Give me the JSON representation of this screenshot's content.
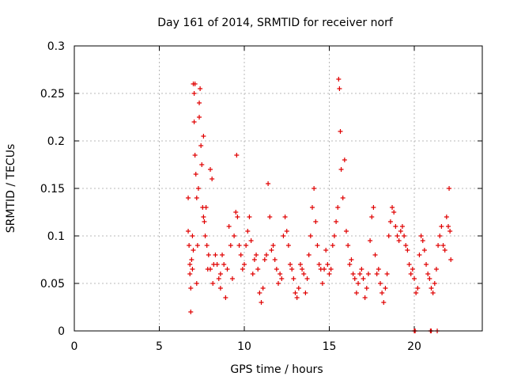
{
  "chart_data": {
    "type": "scatter",
    "title": "Day 161 of 2014, SRMTID for receiver norf",
    "xlabel": "GPS time / hours",
    "ylabel": "SRMTID / TECUs",
    "xlim": [
      0,
      24
    ],
    "ylim": [
      0,
      0.3
    ],
    "xticks": [
      0,
      5,
      10,
      15,
      20
    ],
    "xtick_labels": [
      "0",
      "5",
      "10",
      "15",
      "20"
    ],
    "yticks": [
      0,
      0.05,
      0.1,
      0.15,
      0.2,
      0.25,
      0.3
    ],
    "ytick_labels": [
      "0",
      "0.05",
      "0.1",
      "0.15",
      "0.2",
      "0.25",
      "0.3"
    ],
    "grid": true,
    "marker": "+",
    "color": "#e00000",
    "series": [
      {
        "name": "norf",
        "points": [
          [
            6.7,
            0.14
          ],
          [
            6.7,
            0.105
          ],
          [
            6.75,
            0.09
          ],
          [
            6.8,
            0.07
          ],
          [
            6.8,
            0.06
          ],
          [
            6.85,
            0.045
          ],
          [
            6.85,
            0.02
          ],
          [
            6.9,
            0.075
          ],
          [
            6.95,
            0.1
          ],
          [
            6.95,
            0.065
          ],
          [
            7.0,
            0.085
          ],
          [
            7.0,
            0.26
          ],
          [
            7.05,
            0.22
          ],
          [
            7.05,
            0.25
          ],
          [
            7.1,
            0.26
          ],
          [
            7.1,
            0.185
          ],
          [
            7.15,
            0.165
          ],
          [
            7.2,
            0.14
          ],
          [
            7.2,
            0.05
          ],
          [
            7.25,
            0.09
          ],
          [
            7.3,
            0.15
          ],
          [
            7.35,
            0.24
          ],
          [
            7.35,
            0.225
          ],
          [
            7.4,
            0.255
          ],
          [
            7.45,
            0.195
          ],
          [
            7.5,
            0.175
          ],
          [
            7.55,
            0.13
          ],
          [
            7.6,
            0.12
          ],
          [
            7.6,
            0.205
          ],
          [
            7.65,
            0.115
          ],
          [
            7.7,
            0.1
          ],
          [
            7.75,
            0.13
          ],
          [
            7.8,
            0.09
          ],
          [
            7.85,
            0.065
          ],
          [
            7.9,
            0.08
          ],
          [
            8.0,
            0.065
          ],
          [
            8.0,
            0.17
          ],
          [
            8.1,
            0.16
          ],
          [
            8.15,
            0.05
          ],
          [
            8.2,
            0.07
          ],
          [
            8.3,
            0.08
          ],
          [
            8.4,
            0.07
          ],
          [
            8.5,
            0.055
          ],
          [
            8.6,
            0.06
          ],
          [
            8.6,
            0.045
          ],
          [
            8.7,
            0.08
          ],
          [
            8.8,
            0.07
          ],
          [
            8.9,
            0.035
          ],
          [
            9.0,
            0.065
          ],
          [
            9.1,
            0.11
          ],
          [
            9.2,
            0.09
          ],
          [
            9.3,
            0.055
          ],
          [
            9.4,
            0.1
          ],
          [
            9.5,
            0.125
          ],
          [
            9.55,
            0.185
          ],
          [
            9.6,
            0.12
          ],
          [
            9.7,
            0.09
          ],
          [
            9.8,
            0.08
          ],
          [
            9.9,
            0.065
          ],
          [
            10.0,
            0.07
          ],
          [
            10.1,
            0.09
          ],
          [
            10.2,
            0.105
          ],
          [
            10.3,
            0.12
          ],
          [
            10.4,
            0.095
          ],
          [
            10.5,
            0.06
          ],
          [
            10.6,
            0.075
          ],
          [
            10.7,
            0.08
          ],
          [
            10.8,
            0.065
          ],
          [
            10.9,
            0.04
          ],
          [
            11.0,
            0.03
          ],
          [
            11.1,
            0.045
          ],
          [
            11.2,
            0.075
          ],
          [
            11.3,
            0.08
          ],
          [
            11.4,
            0.155
          ],
          [
            11.5,
            0.12
          ],
          [
            11.6,
            0.085
          ],
          [
            11.7,
            0.09
          ],
          [
            11.8,
            0.075
          ],
          [
            11.9,
            0.065
          ],
          [
            12.0,
            0.05
          ],
          [
            12.1,
            0.06
          ],
          [
            12.2,
            0.055
          ],
          [
            12.3,
            0.1
          ],
          [
            12.4,
            0.12
          ],
          [
            12.5,
            0.105
          ],
          [
            12.6,
            0.09
          ],
          [
            12.7,
            0.07
          ],
          [
            12.8,
            0.065
          ],
          [
            12.9,
            0.055
          ],
          [
            13.0,
            0.04
          ],
          [
            13.1,
            0.035
          ],
          [
            13.2,
            0.045
          ],
          [
            13.3,
            0.07
          ],
          [
            13.4,
            0.065
          ],
          [
            13.5,
            0.06
          ],
          [
            13.6,
            0.04
          ],
          [
            13.7,
            0.055
          ],
          [
            13.8,
            0.08
          ],
          [
            13.9,
            0.1
          ],
          [
            14.0,
            0.13
          ],
          [
            14.1,
            0.15
          ],
          [
            14.2,
            0.115
          ],
          [
            14.3,
            0.09
          ],
          [
            14.4,
            0.07
          ],
          [
            14.5,
            0.065
          ],
          [
            14.6,
            0.05
          ],
          [
            14.7,
            0.065
          ],
          [
            14.8,
            0.085
          ],
          [
            14.9,
            0.07
          ],
          [
            15.0,
            0.06
          ],
          [
            15.1,
            0.065
          ],
          [
            15.2,
            0.09
          ],
          [
            15.3,
            0.1
          ],
          [
            15.4,
            0.115
          ],
          [
            15.5,
            0.13
          ],
          [
            15.55,
            0.265
          ],
          [
            15.6,
            0.255
          ],
          [
            15.65,
            0.21
          ],
          [
            15.7,
            0.17
          ],
          [
            15.8,
            0.14
          ],
          [
            15.9,
            0.18
          ],
          [
            16.0,
            0.105
          ],
          [
            16.1,
            0.09
          ],
          [
            16.2,
            0.07
          ],
          [
            16.3,
            0.075
          ],
          [
            16.4,
            0.06
          ],
          [
            16.5,
            0.055
          ],
          [
            16.6,
            0.04
          ],
          [
            16.7,
            0.05
          ],
          [
            16.8,
            0.06
          ],
          [
            16.9,
            0.065
          ],
          [
            17.0,
            0.055
          ],
          [
            17.1,
            0.035
          ],
          [
            17.2,
            0.045
          ],
          [
            17.3,
            0.06
          ],
          [
            17.4,
            0.095
          ],
          [
            17.5,
            0.12
          ],
          [
            17.6,
            0.13
          ],
          [
            17.7,
            0.08
          ],
          [
            17.8,
            0.06
          ],
          [
            17.9,
            0.065
          ],
          [
            18.0,
            0.05
          ],
          [
            18.1,
            0.04
          ],
          [
            18.2,
            0.03
          ],
          [
            18.3,
            0.045
          ],
          [
            18.4,
            0.06
          ],
          [
            18.5,
            0.1
          ],
          [
            18.6,
            0.115
          ],
          [
            18.7,
            0.13
          ],
          [
            18.8,
            0.125
          ],
          [
            18.9,
            0.11
          ],
          [
            19.0,
            0.1
          ],
          [
            19.1,
            0.095
          ],
          [
            19.2,
            0.105
          ],
          [
            19.3,
            0.11
          ],
          [
            19.4,
            0.1
          ],
          [
            19.5,
            0.09
          ],
          [
            19.6,
            0.085
          ],
          [
            19.7,
            0.07
          ],
          [
            19.8,
            0.06
          ],
          [
            19.9,
            0.065
          ],
          [
            20.0,
            0.055
          ],
          [
            20.1,
            0.04
          ],
          [
            20.2,
            0.045
          ],
          [
            20.3,
            0.08
          ],
          [
            20.4,
            0.1
          ],
          [
            20.5,
            0.095
          ],
          [
            20.6,
            0.085
          ],
          [
            20.7,
            0.07
          ],
          [
            20.8,
            0.06
          ],
          [
            20.9,
            0.055
          ],
          [
            21.0,
            0.045
          ],
          [
            21.1,
            0.04
          ],
          [
            21.2,
            0.05
          ],
          [
            21.3,
            0.065
          ],
          [
            21.4,
            0.09
          ],
          [
            21.5,
            0.1
          ],
          [
            21.6,
            0.11
          ],
          [
            21.7,
            0.09
          ],
          [
            21.8,
            0.085
          ],
          [
            21.9,
            0.12
          ],
          [
            22.0,
            0.11
          ],
          [
            22.05,
            0.15
          ],
          [
            22.1,
            0.105
          ],
          [
            22.15,
            0.075
          ],
          [
            20.05,
            0.0
          ],
          [
            21.0,
            0.0
          ],
          [
            21.35,
            0.0
          ],
          [
            20.0,
            0.0
          ],
          [
            20.95,
            0.0
          ]
        ]
      }
    ]
  }
}
